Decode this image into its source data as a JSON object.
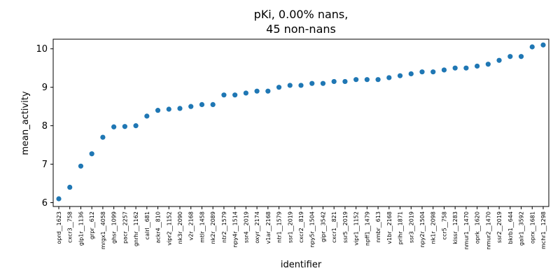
{
  "chart_data": {
    "type": "scatter",
    "title": [
      "pKi, 0.00% nans,",
      "45 non-nans"
    ],
    "xlabel": "identifier",
    "ylabel": "mean_activity",
    "ylim": [
      5.9,
      10.25
    ],
    "yticks": [
      6,
      7,
      8,
      9,
      10
    ],
    "grid": false,
    "legend": "none",
    "marker_color": "#1f77b4",
    "categories": [
      "oprd__1623",
      "cxcr3__758",
      "glp1r__1136",
      "grpr__612",
      "mrgx1__4058",
      "ghsr__1099",
      "pacr__2257",
      "gnrhr__1162",
      "calrl__681",
      "ackr4__810",
      "vipr2__1152",
      "nk3r__2090",
      "v2r__2168",
      "mtlr__1458",
      "nk2r__2089",
      "ntr2__1579",
      "npy4r__1514",
      "ssr4__2019",
      "oxyr__2174",
      "v1ar__2168",
      "ntr1__1579",
      "ssr1__2019",
      "cxcr2__819",
      "npy5r__1504",
      "gipr__3542",
      "cxcr1__821",
      "ssr5__2019",
      "vipr1__1152",
      "npff1__1479",
      "nmbr__613",
      "v1br__2168",
      "prlhr__1871",
      "ssr3__2019",
      "npy2r__1504",
      "nk1r__2098",
      "ccr5__758",
      "kissr__1283",
      "nmur1__1470",
      "oprk__1620",
      "nmur2__1470",
      "ssr2__2019",
      "bkrb1__644",
      "galr1__3592",
      "oprx__1681",
      "mchr1__1298"
    ],
    "values": [
      6.1,
      6.4,
      6.95,
      7.27,
      7.7,
      7.97,
      7.98,
      8.0,
      8.25,
      8.4,
      8.43,
      8.45,
      8.5,
      8.55,
      8.55,
      8.8,
      8.8,
      8.85,
      8.9,
      8.9,
      9.0,
      9.05,
      9.05,
      9.1,
      9.1,
      9.15,
      9.15,
      9.2,
      9.2,
      9.2,
      9.25,
      9.3,
      9.35,
      9.4,
      9.4,
      9.45,
      9.5,
      9.5,
      9.55,
      9.6,
      9.7,
      9.8,
      9.8,
      10.05,
      10.1
    ]
  }
}
